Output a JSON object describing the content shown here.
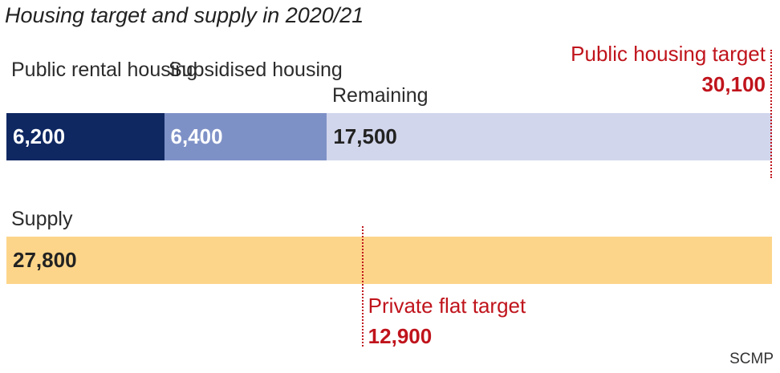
{
  "title": "Housing target and supply in 2020/21",
  "source": "SCMP",
  "colors": {
    "public_rental": "#0f2862",
    "subsidised": "#7e91c7",
    "remaining": "#d2d6ec",
    "supply": "#fdd58a",
    "target": "#c0141c"
  },
  "chart_data": [
    {
      "type": "bar",
      "orientation": "horizontal",
      "stacked": true,
      "series": [
        {
          "name": "Public rental housing",
          "value": 6200,
          "value_label": "6,200"
        },
        {
          "name": "Subsidised housing",
          "value": 6400,
          "value_label": "6,400"
        },
        {
          "name": "Remaining",
          "value": 17500,
          "value_label": "17,500"
        }
      ],
      "target": {
        "label": "Public housing target",
        "value": 30100,
        "value_label": "30,100"
      },
      "xlim": [
        0,
        30100
      ]
    },
    {
      "type": "bar",
      "orientation": "horizontal",
      "series": [
        {
          "name": "Supply",
          "value": 27800,
          "value_label": "27,800"
        }
      ],
      "target": {
        "label": "Private flat target",
        "value": 12900,
        "value_label": "12,900"
      },
      "xlim": [
        0,
        27800
      ]
    }
  ]
}
